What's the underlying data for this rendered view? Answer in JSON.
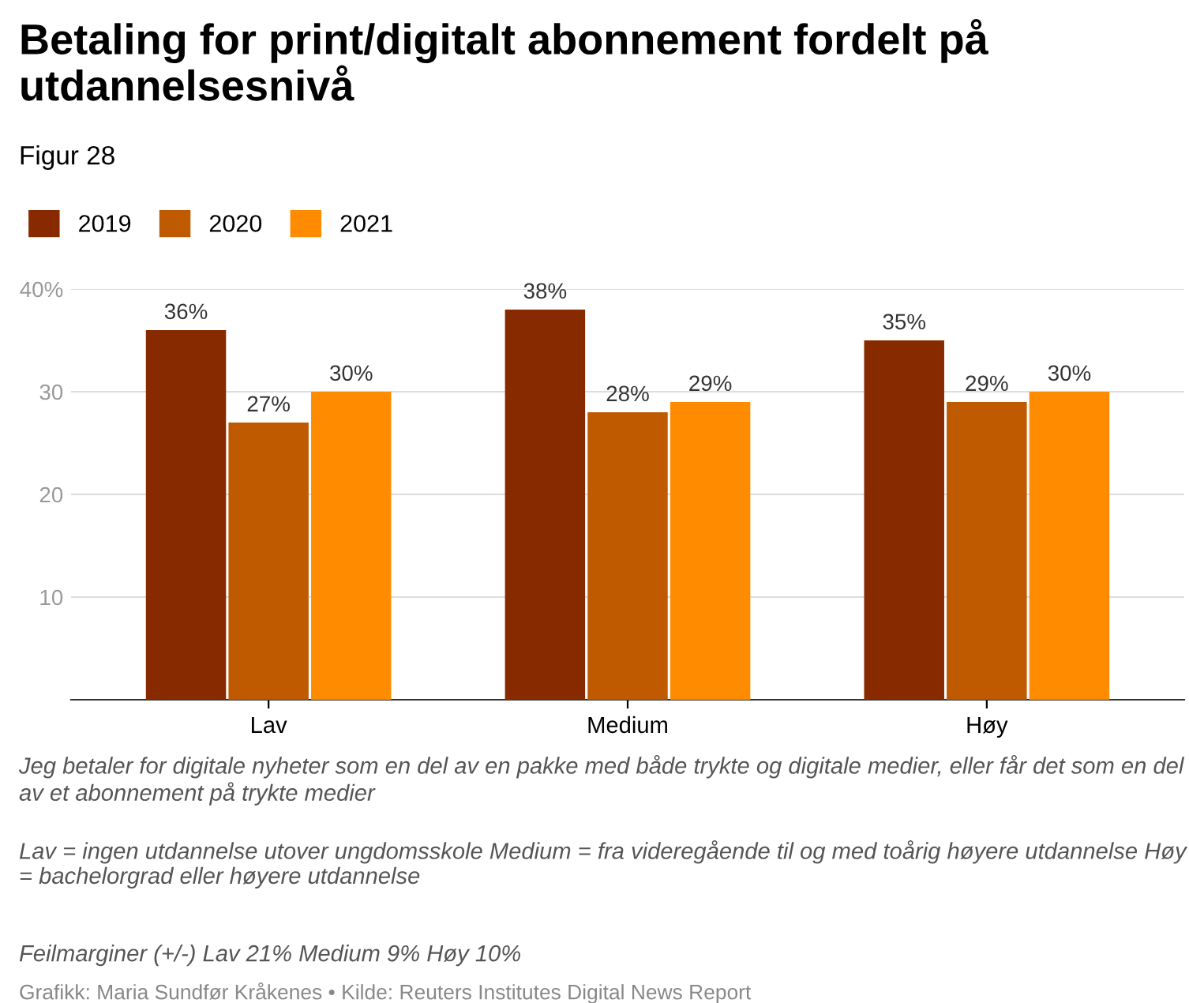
{
  "chart_data": {
    "type": "bar",
    "title": "Betaling for print/digitalt abonnement fordelt på utdannelsesnivå",
    "subtitle": "Figur 28",
    "categories": [
      "Lav",
      "Medium",
      "Høy"
    ],
    "series": [
      {
        "name": "2019",
        "color": "#882a00",
        "values": [
          36,
          38,
          35
        ],
        "value_labels": [
          "36%",
          "38%",
          "35%"
        ]
      },
      {
        "name": "2020",
        "color": "#c05a00",
        "values": [
          27,
          28,
          29
        ],
        "value_labels": [
          "27%",
          "28%",
          "29%"
        ]
      },
      {
        "name": "2021",
        "color": "#ff8c00",
        "values": [
          30,
          29,
          30
        ],
        "value_labels": [
          "30%",
          "29%",
          "30%"
        ]
      }
    ],
    "ylim": [
      0,
      40
    ],
    "yticks": [
      {
        "value": 10,
        "label": "10"
      },
      {
        "value": 20,
        "label": "20"
      },
      {
        "value": 30,
        "label": "30"
      },
      {
        "value": 40,
        "label": "40%"
      }
    ],
    "grid": "y",
    "legend": "top left",
    "annotations": [
      "Jeg betaler for digitale nyheter som en del av en pakke med både trykte og digitale medier, eller får det som en del av et abonnement på trykte medier",
      "Lav = ingen utdannelse utover ungdomsskole Medium = fra videregående til og med toårig høyere utdannelse Høy = bachelorgrad eller høyere utdannelse",
      "Feilmarginer (+/-) Lav 21% Medium 9% Høy 10%",
      "Grafikk: Maria Sundfør Kråkenes • Kilde: Reuters Institutes Digital News Report"
    ]
  }
}
